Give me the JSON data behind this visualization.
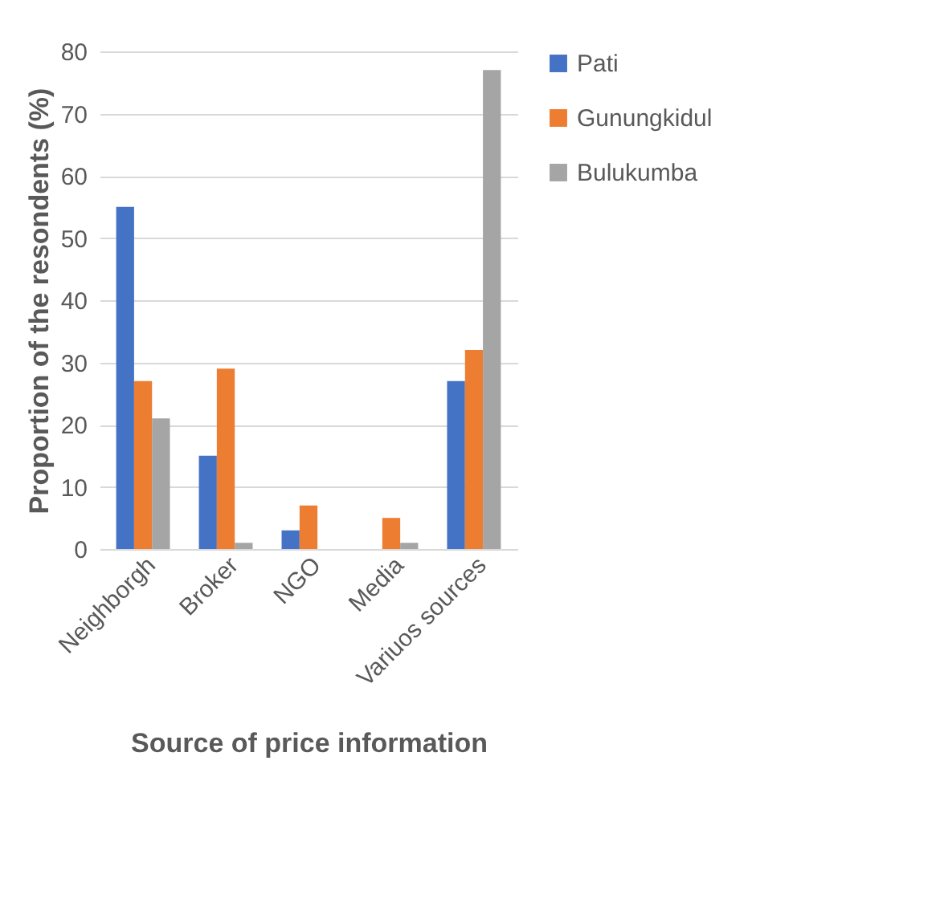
{
  "chart_data": {
    "type": "bar",
    "xlabel": "Source of price information",
    "ylabel": "Proportion of the resondents (%)",
    "categories": [
      "Neighborgh",
      "Broker",
      "NGO",
      "Media",
      "Variuos sources"
    ],
    "series": [
      {
        "name": "Pati",
        "color": "#4472c4",
        "values": [
          55,
          15,
          3,
          0,
          27
        ]
      },
      {
        "name": "Gunungkidul",
        "color": "#ed7d31",
        "values": [
          27,
          29,
          7,
          5,
          32
        ]
      },
      {
        "name": "Bulukumba",
        "color": "#a5a5a5",
        "values": [
          21,
          1,
          0,
          1,
          77
        ]
      }
    ],
    "ylim": [
      0,
      80
    ],
    "yticks": [
      0,
      10,
      20,
      30,
      40,
      50,
      60,
      70,
      80
    ],
    "grid": "y",
    "legend": "right"
  }
}
